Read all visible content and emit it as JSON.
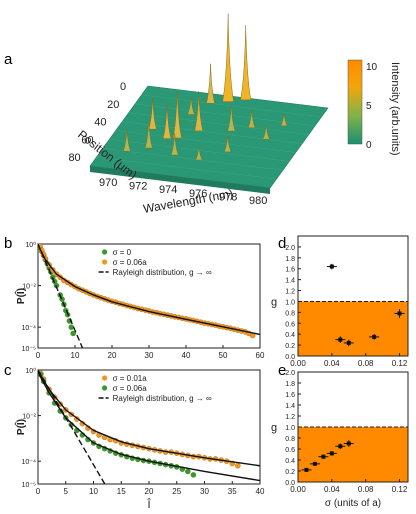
{
  "panel_letters": {
    "a": "a",
    "b": "b",
    "c": "c",
    "d": "d",
    "e": "e"
  },
  "chart_data": [
    {
      "panel": "a",
      "type": "surface3d",
      "xlabel": "Wavelength (nm)",
      "ylabel": "Position (μm)",
      "x_ticks": [
        "970",
        "972",
        "974",
        "976",
        "978",
        "980"
      ],
      "y_ticks": [
        "0",
        "20",
        "40",
        "60",
        "80"
      ],
      "colorbar": {
        "label": "Intensity (arb.units)",
        "ticks": [
          "0",
          "5",
          "10"
        ],
        "colors": [
          "#1a8f72",
          "#7fb24a",
          "#f2a60c",
          "#ff8a00"
        ]
      },
      "peaks": [
        {
          "wavelength": 974.6,
          "position": 6,
          "height": 10.0
        },
        {
          "wavelength": 975.6,
          "position": 2,
          "height": 8.5
        },
        {
          "wavelength": 973.6,
          "position": 10,
          "height": 4.5
        },
        {
          "wavelength": 972.5,
          "position": 52,
          "height": 4.0
        },
        {
          "wavelength": 973.1,
          "position": 50,
          "height": 5.5
        },
        {
          "wavelength": 974.1,
          "position": 40,
          "height": 4.5
        },
        {
          "wavelength": 971.2,
          "position": 44,
          "height": 3.5
        },
        {
          "wavelength": 970.6,
          "position": 70,
          "height": 2.5
        },
        {
          "wavelength": 971.8,
          "position": 64,
          "height": 3.0
        },
        {
          "wavelength": 973.7,
          "position": 68,
          "height": 2.5
        },
        {
          "wavelength": 976.1,
          "position": 36,
          "height": 3.0
        },
        {
          "wavelength": 977.2,
          "position": 30,
          "height": 2.0
        },
        {
          "wavelength": 976.8,
          "position": 58,
          "height": 1.8
        },
        {
          "wavelength": 978.6,
          "position": 40,
          "height": 1.6
        },
        {
          "wavelength": 979.1,
          "position": 24,
          "height": 1.4
        },
        {
          "wavelength": 972.9,
          "position": 24,
          "height": 2.0
        },
        {
          "wavelength": 975.4,
          "position": 70,
          "height": 1.5
        }
      ]
    },
    {
      "panel": "b",
      "type": "scatter",
      "xlabel": "",
      "ylabel": "P(Î)",
      "xlim": [
        0,
        60
      ],
      "ylim_log10": [
        -5,
        0
      ],
      "x_ticks": [
        0,
        10,
        20,
        30,
        40,
        50,
        60
      ],
      "y_ticks": [
        "10⁰",
        "10⁻²",
        "10⁻⁴",
        "10⁻⁵"
      ],
      "y_tick_values": [
        0,
        -2,
        -4,
        -5
      ],
      "series": [
        {
          "name": "σ = 0",
          "color": "#2e9d2e",
          "points": [
            [
              0.5,
              -0.15
            ],
            [
              1,
              -0.35
            ],
            [
              1.5,
              -0.55
            ],
            [
              2,
              -0.75
            ],
            [
              2.5,
              -0.95
            ],
            [
              3,
              -1.15
            ],
            [
              3.5,
              -1.35
            ],
            [
              4,
              -1.6
            ],
            [
              4.5,
              -1.8
            ],
            [
              5,
              -2.0
            ],
            [
              6,
              -2.45
            ],
            [
              6.5,
              -2.65
            ],
            [
              7,
              -2.9
            ],
            [
              7.5,
              -3.2
            ],
            [
              8,
              -3.4
            ],
            [
              8.5,
              -3.7
            ],
            [
              9,
              -4.0
            ],
            [
              9.5,
              -4.3
            ]
          ]
        },
        {
          "name": "σ = 0.06a",
          "color": "#f7941d",
          "points": [
            [
              0.5,
              -0.1
            ],
            [
              1,
              -0.3
            ],
            [
              1.5,
              -0.5
            ],
            [
              2,
              -0.7
            ],
            [
              3,
              -1.0
            ],
            [
              4,
              -1.25
            ],
            [
              5,
              -1.45
            ],
            [
              6,
              -1.6
            ],
            [
              7,
              -1.75
            ],
            [
              8,
              -1.85
            ],
            [
              9,
              -1.95
            ],
            [
              10,
              -2.05
            ],
            [
              11,
              -2.15
            ],
            [
              12,
              -2.22
            ],
            [
              13,
              -2.3
            ],
            [
              14,
              -2.38
            ],
            [
              15,
              -2.45
            ],
            [
              16,
              -2.52
            ],
            [
              17,
              -2.58
            ],
            [
              18,
              -2.64
            ],
            [
              19,
              -2.7
            ],
            [
              20,
              -2.76
            ],
            [
              21,
              -2.8
            ],
            [
              22,
              -2.86
            ],
            [
              23,
              -2.9
            ],
            [
              24,
              -2.96
            ],
            [
              25,
              -3.0
            ],
            [
              26,
              -3.05
            ],
            [
              27,
              -3.1
            ],
            [
              28,
              -3.14
            ],
            [
              29,
              -3.18
            ],
            [
              30,
              -3.22
            ],
            [
              31,
              -3.27
            ],
            [
              32,
              -3.3
            ],
            [
              33,
              -3.35
            ],
            [
              34,
              -3.38
            ],
            [
              35,
              -3.42
            ],
            [
              36,
              -3.46
            ],
            [
              37,
              -3.5
            ],
            [
              38,
              -3.53
            ],
            [
              39,
              -3.57
            ],
            [
              40,
              -3.6
            ],
            [
              41,
              -3.64
            ],
            [
              42,
              -3.68
            ],
            [
              43,
              -3.72
            ],
            [
              44,
              -3.76
            ],
            [
              45,
              -3.8
            ],
            [
              46,
              -3.83
            ],
            [
              47,
              -3.87
            ],
            [
              48,
              -3.9
            ],
            [
              49,
              -3.95
            ],
            [
              50,
              -3.98
            ],
            [
              51,
              -4.02
            ],
            [
              52,
              -4.05
            ],
            [
              53,
              -4.1
            ],
            [
              54,
              -4.14
            ],
            [
              55,
              -4.18
            ],
            [
              56,
              -4.22
            ],
            [
              57,
              -4.3
            ],
            [
              58,
              -4.4
            ]
          ]
        }
      ],
      "fit_line": [
        [
          0,
          -0.05
        ],
        [
          2,
          -0.75
        ],
        [
          5,
          -1.45
        ],
        [
          10,
          -2.05
        ],
        [
          15,
          -2.45
        ],
        [
          20,
          -2.78
        ],
        [
          30,
          -3.25
        ],
        [
          40,
          -3.62
        ],
        [
          50,
          -3.98
        ],
        [
          60,
          -4.35
        ]
      ],
      "rayleigh": [
        [
          0,
          0
        ],
        [
          13,
          -5.4
        ]
      ],
      "legend": {
        "rayleigh": "Rayleigh distribution, g → ∞"
      }
    },
    {
      "panel": "c",
      "type": "scatter",
      "xlabel": "Î",
      "ylabel": "P(Î)",
      "xlim": [
        0,
        40
      ],
      "ylim_log10": [
        -5,
        0
      ],
      "x_ticks": [
        0,
        5,
        10,
        15,
        20,
        25,
        30,
        35,
        40
      ],
      "y_ticks": [
        "10⁰",
        "10⁻²",
        "10⁻⁴",
        "10⁻⁵"
      ],
      "y_tick_values": [
        0,
        -2,
        -4,
        -5
      ],
      "series": [
        {
          "name": "σ = 0.01a",
          "color": "#f7941d",
          "points": [
            [
              0.5,
              -0.15
            ],
            [
              1,
              -0.4
            ],
            [
              2,
              -0.85
            ],
            [
              3,
              -1.2
            ],
            [
              4,
              -1.5
            ],
            [
              5,
              -1.75
            ],
            [
              6,
              -1.95
            ],
            [
              7,
              -2.15
            ],
            [
              8,
              -2.35
            ],
            [
              9,
              -2.55
            ],
            [
              10,
              -2.7
            ],
            [
              11,
              -2.85
            ],
            [
              12,
              -2.95
            ],
            [
              13,
              -3.05
            ],
            [
              14,
              -3.1
            ],
            [
              15,
              -3.2
            ],
            [
              16,
              -3.25
            ],
            [
              17,
              -3.3
            ],
            [
              18,
              -3.35
            ],
            [
              19,
              -3.4
            ],
            [
              20,
              -3.45
            ],
            [
              21,
              -3.5
            ],
            [
              22,
              -3.55
            ],
            [
              23,
              -3.6
            ],
            [
              24,
              -3.6
            ],
            [
              25,
              -3.65
            ],
            [
              26,
              -3.7
            ],
            [
              27,
              -3.75
            ],
            [
              28,
              -3.8
            ],
            [
              29,
              -3.8
            ],
            [
              30,
              -3.85
            ],
            [
              31,
              -3.9
            ],
            [
              32,
              -3.9
            ],
            [
              33,
              -3.95
            ],
            [
              34,
              -4.0
            ],
            [
              35,
              -4.1
            ],
            [
              36,
              -4.2
            ]
          ]
        },
        {
          "name": "σ = 0.06a",
          "color": "#2e9d2e",
          "points": [
            [
              0.5,
              -0.2
            ],
            [
              1,
              -0.5
            ],
            [
              2,
              -1.0
            ],
            [
              3,
              -1.45
            ],
            [
              4,
              -1.8
            ],
            [
              5,
              -2.1
            ],
            [
              6,
              -2.4
            ],
            [
              7,
              -2.65
            ],
            [
              8,
              -2.85
            ],
            [
              9,
              -3.05
            ],
            [
              10,
              -3.2
            ],
            [
              11,
              -3.35
            ],
            [
              12,
              -3.45
            ],
            [
              13,
              -3.55
            ],
            [
              14,
              -3.65
            ],
            [
              15,
              -3.72
            ],
            [
              16,
              -3.8
            ],
            [
              17,
              -3.87
            ],
            [
              18,
              -3.92
            ],
            [
              19,
              -3.97
            ],
            [
              20,
              -4.0
            ],
            [
              21,
              -4.05
            ],
            [
              22,
              -4.1
            ],
            [
              23,
              -4.15
            ],
            [
              24,
              -4.2
            ],
            [
              25,
              -4.25
            ],
            [
              26,
              -4.35
            ],
            [
              27,
              -4.45
            ],
            [
              28,
              -4.6
            ]
          ]
        }
      ],
      "fit_lines": [
        [
          [
            0,
            -0.05
          ],
          [
            2,
            -0.85
          ],
          [
            5,
            -1.75
          ],
          [
            10,
            -2.65
          ],
          [
            15,
            -3.15
          ],
          [
            20,
            -3.45
          ],
          [
            30,
            -3.85
          ],
          [
            40,
            -4.2
          ]
        ],
        [
          [
            0,
            -0.1
          ],
          [
            2,
            -1.0
          ],
          [
            5,
            -2.1
          ],
          [
            10,
            -3.2
          ],
          [
            15,
            -3.7
          ],
          [
            20,
            -4.0
          ],
          [
            30,
            -4.45
          ],
          [
            40,
            -4.85
          ]
        ]
      ],
      "rayleigh": [
        [
          0,
          0
        ],
        [
          13,
          -5.4
        ]
      ],
      "legend": {
        "rayleigh": "Rayleigh distribution, g → ∞"
      }
    },
    {
      "panel": "d",
      "type": "scatter",
      "xlabel": "",
      "ylabel": "g",
      "xlim": [
        0,
        0.13
      ],
      "ylim": [
        0,
        2.2
      ],
      "x_ticks": [
        "0.00",
        "0.04",
        "0.08",
        "0.12"
      ],
      "x_tick_values": [
        0,
        0.04,
        0.08,
        0.12
      ],
      "y_ticks": [
        "0.0",
        "0.2",
        "0.4",
        "0.6",
        "0.8",
        "1.0",
        "1.2",
        "1.4",
        "1.6",
        "1.8",
        "2.0"
      ],
      "y_tick_values": [
        0,
        0.2,
        0.4,
        0.6,
        0.8,
        1.0,
        1.2,
        1.4,
        1.6,
        1.8,
        2.0
      ],
      "threshold": 1.0,
      "fill_color": "#ff8a00",
      "points": [
        [
          0.04,
          1.64,
          0.05
        ],
        [
          0.05,
          0.3,
          0.06
        ],
        [
          0.06,
          0.24,
          0.06
        ],
        [
          0.09,
          0.35,
          0.05
        ],
        [
          0.12,
          0.78,
          0.08
        ]
      ]
    },
    {
      "panel": "e",
      "type": "scatter",
      "xlabel": "σ (units of a)",
      "ylabel": "g",
      "xlim": [
        0,
        0.13
      ],
      "ylim": [
        0,
        2.0
      ],
      "x_ticks": [
        "0.00",
        "0.04",
        "0.08",
        "0.12"
      ],
      "x_tick_values": [
        0,
        0.04,
        0.08,
        0.12
      ],
      "y_ticks": [
        "0.0",
        "0.2",
        "0.4",
        "0.6",
        "0.8",
        "1.0",
        "1.2",
        "1.4",
        "1.6",
        "1.8",
        "2.0"
      ],
      "y_tick_values": [
        0,
        0.2,
        0.4,
        0.6,
        0.8,
        1.0,
        1.2,
        1.4,
        1.6,
        1.8,
        2.0
      ],
      "threshold": 1.0,
      "fill_color": "#ff8a00",
      "points": [
        [
          0.01,
          0.22,
          0.03
        ],
        [
          0.02,
          0.33,
          0.03
        ],
        [
          0.03,
          0.46,
          0.04
        ],
        [
          0.04,
          0.52,
          0.04
        ],
        [
          0.05,
          0.65,
          0.05
        ],
        [
          0.06,
          0.7,
          0.06
        ]
      ]
    }
  ]
}
